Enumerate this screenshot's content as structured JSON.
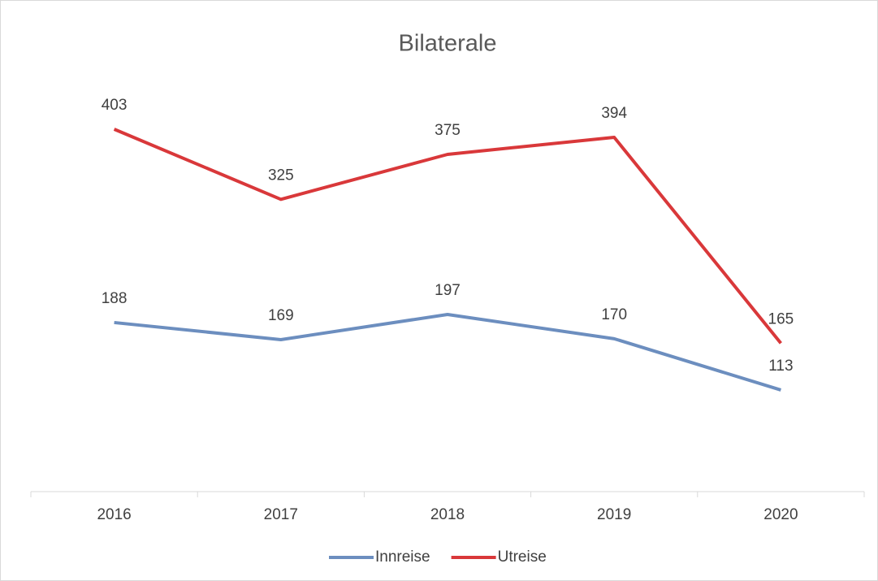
{
  "chart_data": {
    "type": "line",
    "title": "Bilaterale",
    "categories": [
      "2016",
      "2017",
      "2018",
      "2019",
      "2020"
    ],
    "series": [
      {
        "name": "Innreise",
        "color": "#6c8ebf",
        "values": [
          188,
          169,
          197,
          170,
          113
        ]
      },
      {
        "name": "Utreise",
        "color": "#d9383a",
        "values": [
          403,
          325,
          375,
          394,
          165
        ]
      }
    ],
    "ylim": [
      0,
      450
    ],
    "legend": "bottom"
  }
}
